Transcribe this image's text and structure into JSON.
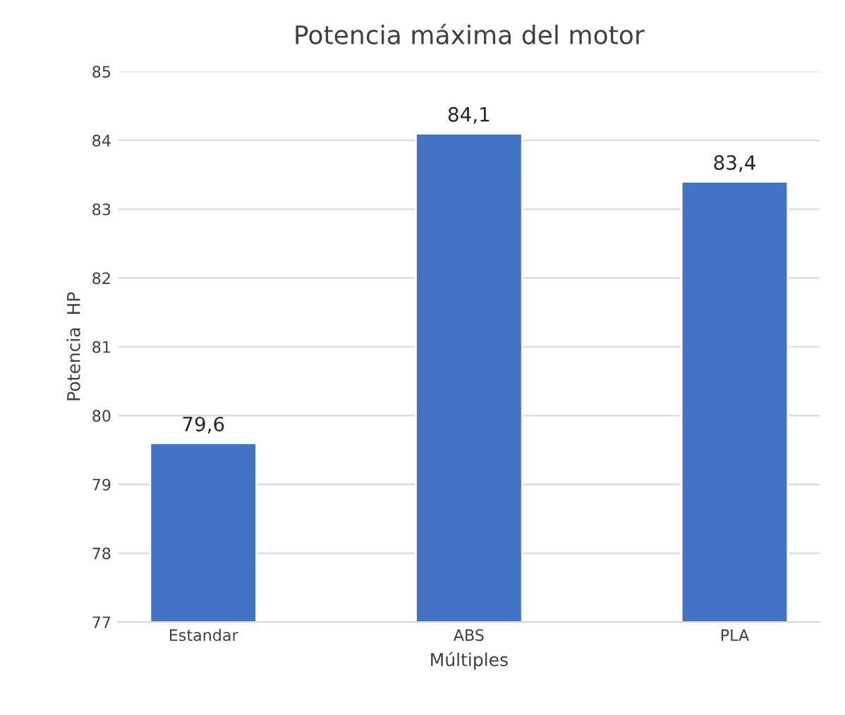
{
  "chart_data": {
    "type": "bar",
    "title": "Potencia máxima del motor",
    "xlabel": "Múltiples",
    "ylabel": "Potencia  HP",
    "categories": [
      "Estandar",
      "ABS",
      "PLA"
    ],
    "values": [
      79.6,
      84.1,
      83.4
    ],
    "value_labels": [
      "79,6",
      "84,1",
      "83,4"
    ],
    "color": "#4472c4",
    "ylim": [
      77,
      85
    ],
    "yticks": [
      77,
      78,
      79,
      80,
      81,
      82,
      83,
      84,
      85
    ],
    "grid": "y",
    "legend": false
  }
}
